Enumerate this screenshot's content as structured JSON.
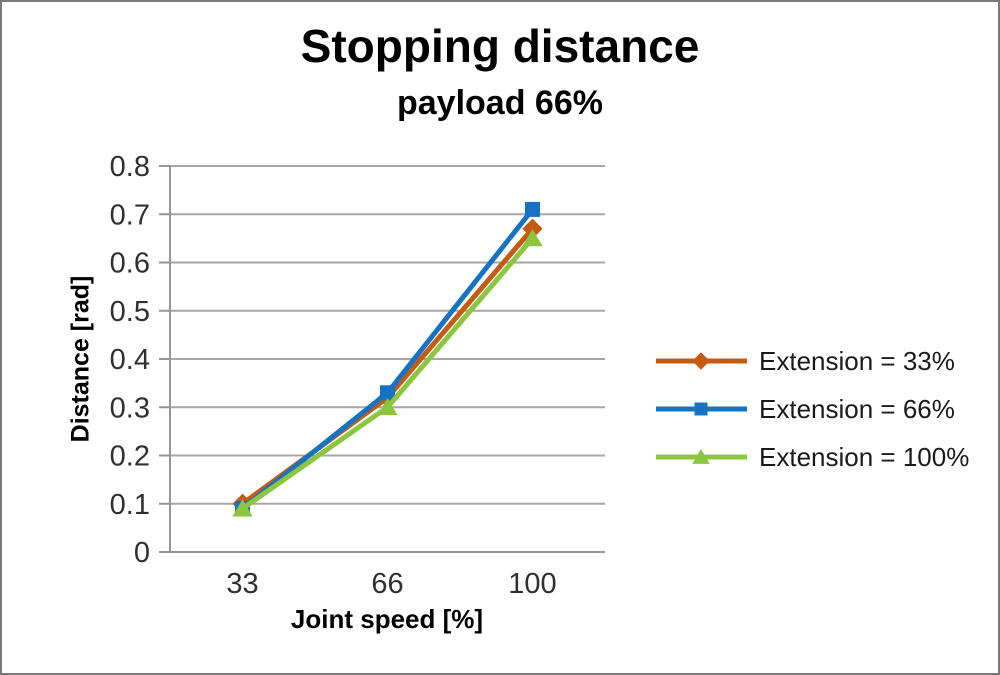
{
  "title": "Stopping distance",
  "subtitle": "payload 66%",
  "chart_data": {
    "type": "line",
    "categories": [
      "33",
      "66",
      "100"
    ],
    "series": [
      {
        "name": "Extension = 33%",
        "color": "#C55A11",
        "marker": "diamond",
        "values": [
          0.1,
          0.32,
          0.67
        ]
      },
      {
        "name": "Extension = 66%",
        "color": "#1673C3",
        "marker": "square",
        "values": [
          0.09,
          0.33,
          0.71
        ]
      },
      {
        "name": "Extension = 100%",
        "color": "#8CC63F",
        "marker": "triangle",
        "values": [
          0.09,
          0.3,
          0.65
        ]
      }
    ],
    "xlabel": "Joint speed [%]",
    "ylabel": "Distance [rad]",
    "ylim": [
      0,
      0.8
    ],
    "ytick_step": 0.1,
    "ytick_labels": [
      "0",
      "0.1",
      "0.2",
      "0.3",
      "0.4",
      "0.5",
      "0.6",
      "0.7",
      "0.8"
    ],
    "grid": true,
    "legend_position": "right",
    "grid_color": "#A6A6A6",
    "axis_color": "#969696"
  }
}
